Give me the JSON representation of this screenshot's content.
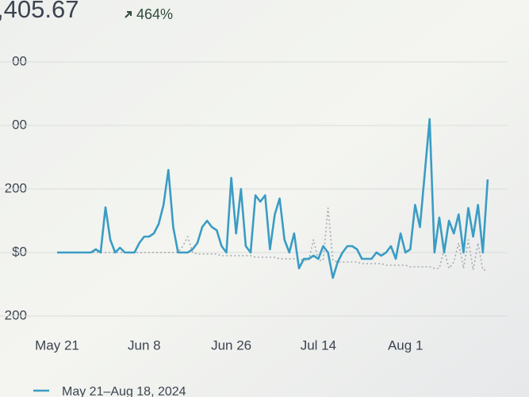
{
  "chart_data": {
    "type": "line",
    "title": ",405.67",
    "change": "464%",
    "categories": [
      "May 21",
      null,
      null,
      null,
      null,
      null,
      null,
      null,
      null,
      null,
      null,
      null,
      null,
      null,
      null,
      null,
      null,
      null,
      "Jun 8",
      null,
      null,
      null,
      null,
      null,
      null,
      null,
      null,
      null,
      null,
      null,
      null,
      null,
      null,
      null,
      null,
      null,
      "Jun 26",
      null,
      null,
      null,
      null,
      null,
      null,
      null,
      null,
      null,
      null,
      null,
      null,
      null,
      null,
      null,
      null,
      null,
      "Jul 14",
      null,
      null,
      null,
      null,
      null,
      null,
      null,
      null,
      null,
      null,
      null,
      null,
      null,
      null,
      null,
      null,
      null,
      "Aug 1",
      null,
      null,
      null,
      null,
      null,
      null,
      null,
      null,
      null,
      null,
      null,
      null,
      null,
      null,
      null,
      null,
      null
    ],
    "series": [
      {
        "name": "May 21–Aug 18, 2024",
        "color": "#3a9cc4",
        "style": "solid",
        "values": [
          0,
          0,
          0,
          0,
          0,
          0,
          0,
          0,
          10,
          0,
          142,
          40,
          0,
          15,
          0,
          0,
          0,
          30,
          50,
          50,
          60,
          90,
          150,
          260,
          80,
          0,
          0,
          0,
          10,
          30,
          80,
          100,
          80,
          70,
          20,
          0,
          235,
          60,
          200,
          20,
          0,
          180,
          160,
          180,
          10,
          120,
          170,
          40,
          0,
          60,
          -50,
          -20,
          -20,
          -10,
          -20,
          20,
          0,
          -80,
          -30,
          0,
          20,
          20,
          10,
          -20,
          -20,
          -20,
          0,
          -10,
          0,
          20,
          -20,
          60,
          0,
          10,
          150,
          80,
          250,
          420,
          0,
          110,
          0,
          100,
          60,
          120,
          0,
          140,
          50,
          150,
          0,
          230
        ]
      },
      {
        "color": "#a3aab2",
        "style": "dotted",
        "values": [
          0,
          0,
          0,
          0,
          0,
          0,
          0,
          0,
          0,
          0,
          0,
          0,
          0,
          0,
          0,
          0,
          0,
          0,
          0,
          0,
          0,
          0,
          0,
          0,
          0,
          0,
          20,
          50,
          0,
          -5,
          -5,
          -5,
          -5,
          -5,
          -10,
          -10,
          -10,
          -10,
          -10,
          -10,
          -10,
          -15,
          -15,
          -15,
          -15,
          -15,
          -20,
          -20,
          -20,
          -20,
          -20,
          -25,
          -25,
          40,
          -25,
          -25,
          140,
          -25,
          -30,
          -30,
          -30,
          -30,
          -30,
          -35,
          -35,
          -35,
          -35,
          -35,
          -40,
          -40,
          -40,
          -40,
          -40,
          -45,
          -45,
          -45,
          -45,
          -45,
          -50,
          -50,
          10,
          -50,
          -30,
          30,
          -50,
          40,
          -55,
          30,
          -55,
          -55
        ]
      }
    ],
    "ylim": [
      -200,
      600
    ],
    "yticks": [
      {
        "value": 600,
        "label": "00"
      },
      {
        "value": 400,
        "label": "00"
      },
      200,
      {
        "value": 0,
        "label": "$0"
      },
      {
        "value": -200,
        "label": "200"
      }
    ],
    "grid": true
  }
}
